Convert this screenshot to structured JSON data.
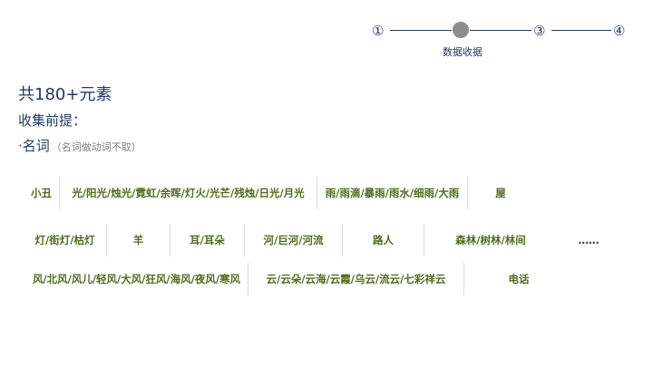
{
  "stepper": {
    "step1": "①",
    "step3": "③",
    "step4": "④",
    "current_label": "数据收据"
  },
  "heading": {
    "title": "共180+元素",
    "subtitle": "收集前提：",
    "noun_label": "·名词",
    "noun_note": "（名词做动词不取）"
  },
  "rows": [
    [
      "小丑",
      "光/阳光/烛光/霓虹/余晖/灯火/光芒/残烛/日光/月光",
      "雨/雨滴/暴雨/雨水/细雨/大雨",
      "屋"
    ],
    [
      "灯/街灯/枯灯",
      "羊",
      "耳/耳朵",
      "河/巨河/河流",
      "路人",
      "森林/树林/林间",
      "……"
    ],
    [
      "风/北风/风儿/轻风/大风/狂风/海风/夜风/寒风",
      "云/云朵/云海/云霞/乌云/流云/七彩祥云",
      "电话"
    ]
  ]
}
